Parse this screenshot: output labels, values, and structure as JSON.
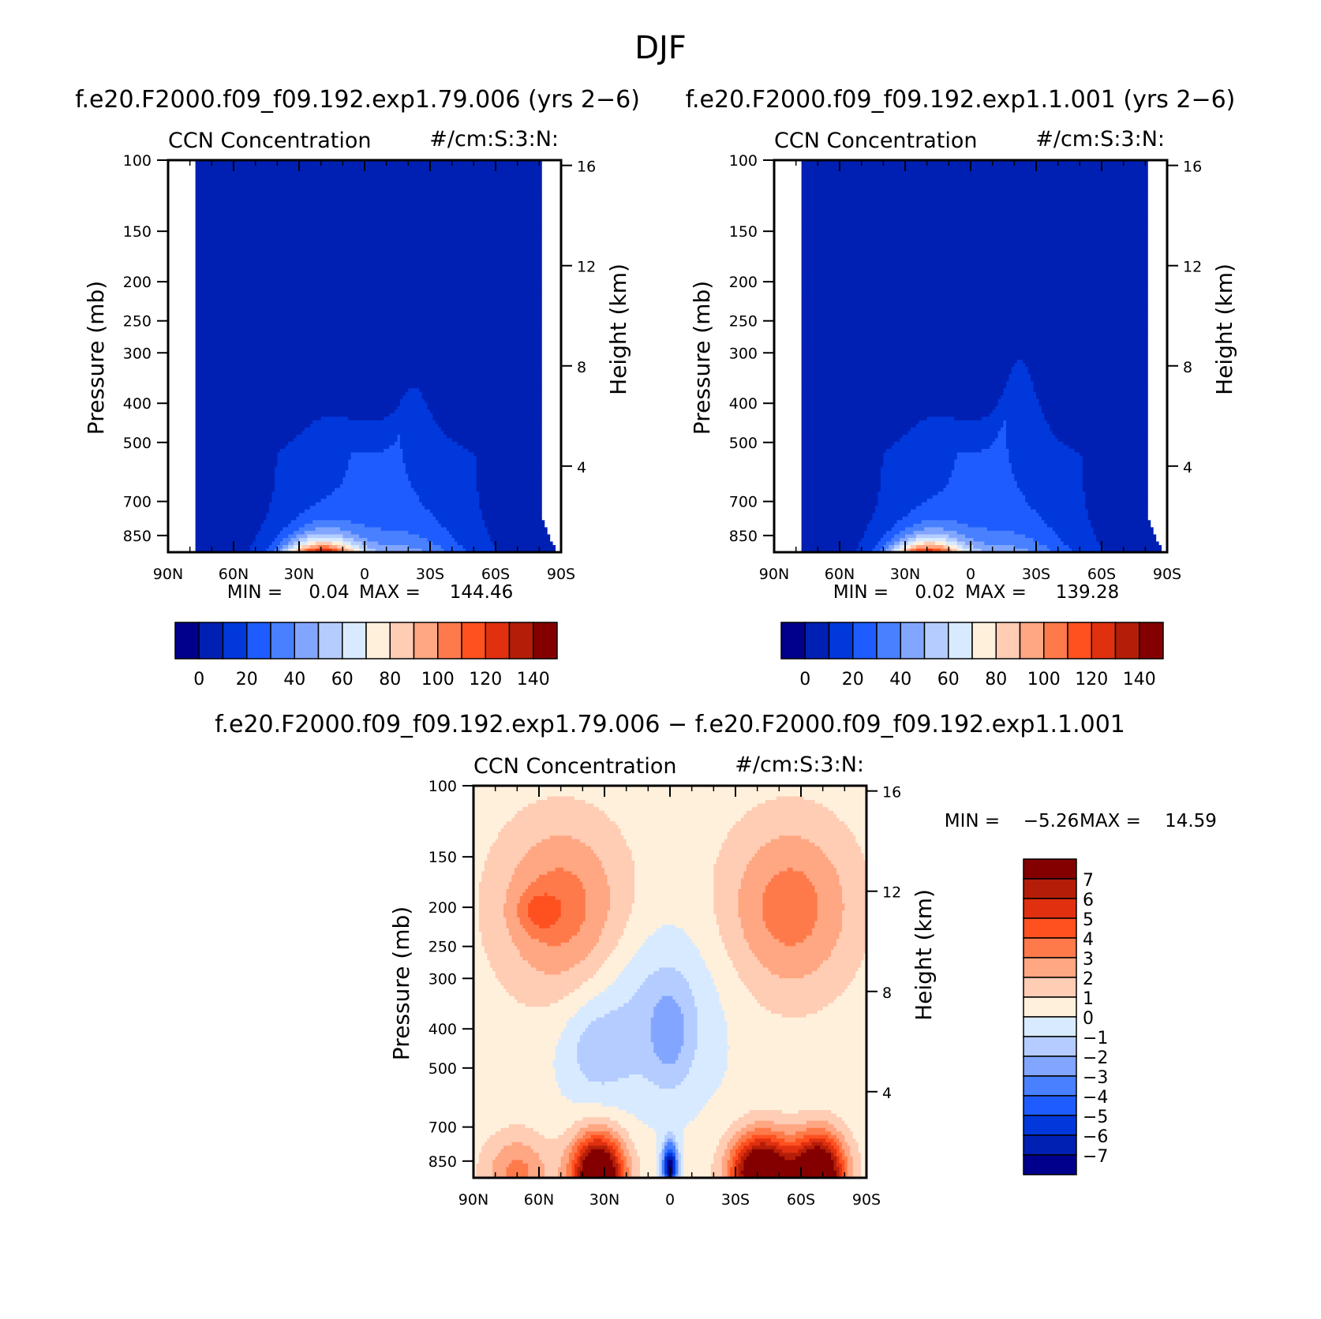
{
  "figure_title": "DJF",
  "chart_data": [
    {
      "type": "heatmap",
      "run_title": "f.e20.F2000.f09_f09.192.exp1.79.006 (yrs 2−6)",
      "variable": "CCN Concentration",
      "units": "#/cm:S:3:N:",
      "ylabel": "Pressure (mb)",
      "ylabel_right": "Height (km)",
      "x_ticks": [
        "90N",
        "60N",
        "30N",
        "0",
        "30S",
        "60S",
        "90S"
      ],
      "y_ticks": [
        "100",
        "150",
        "200",
        "250",
        "300",
        "400",
        "500",
        "700",
        "850"
      ],
      "y_ticks_right": [
        "16",
        "12",
        "8",
        "4"
      ],
      "min_label": "MIN =",
      "min_value": "0.04",
      "max_label": "MAX =",
      "max_value": "144.46",
      "colorbar_labels": [
        "0",
        "20",
        "40",
        "60",
        "80",
        "100",
        "120",
        "140"
      ],
      "colors": [
        "#00008c",
        "#0020b4",
        "#0038dc",
        "#1e5cff",
        "#4880ff",
        "#82a6ff",
        "#b4ccff",
        "#d8eaff",
        "#fff0dc",
        "#ffccb4",
        "#ffa682",
        "#ff7a4a",
        "#ff5020",
        "#e03010",
        "#b41e08",
        "#840000"
      ],
      "levels": [
        0,
        10,
        20,
        30,
        40,
        50,
        60,
        70,
        80,
        90,
        100,
        110,
        120,
        130,
        140
      ],
      "surface_max_value": 144.46,
      "peak_lat_deg": 20,
      "peak_width_deg": 17
    },
    {
      "type": "heatmap",
      "run_title": "f.e20.F2000.f09_f09.192.exp1.1.001 (yrs 2−6)",
      "variable": "CCN Concentration",
      "units": "#/cm:S:3:N:",
      "ylabel": "Pressure (mb)",
      "ylabel_right": "Height (km)",
      "x_ticks": [
        "90N",
        "60N",
        "30N",
        "0",
        "30S",
        "60S",
        "90S"
      ],
      "y_ticks": [
        "100",
        "150",
        "200",
        "250",
        "300",
        "400",
        "500",
        "700",
        "850"
      ],
      "y_ticks_right": [
        "16",
        "12",
        "8",
        "4"
      ],
      "min_label": "MIN =",
      "min_value": "0.02",
      "max_label": "MAX =",
      "max_value": "139.28",
      "colorbar_labels": [
        "0",
        "20",
        "40",
        "60",
        "80",
        "100",
        "120",
        "140"
      ],
      "colors": [
        "#00008c",
        "#0020b4",
        "#0038dc",
        "#1e5cff",
        "#4880ff",
        "#82a6ff",
        "#b4ccff",
        "#d8eaff",
        "#fff0dc",
        "#ffccb4",
        "#ffa682",
        "#ff7a4a",
        "#ff5020",
        "#e03010",
        "#b41e08",
        "#840000"
      ],
      "levels": [
        0,
        10,
        20,
        30,
        40,
        50,
        60,
        70,
        80,
        90,
        100,
        110,
        120,
        130,
        140
      ],
      "surface_max_value": 139.28,
      "peak_lat_deg": 20,
      "peak_width_deg": 17
    },
    {
      "type": "heatmap",
      "run_title": "f.e20.F2000.f09_f09.192.exp1.79.006 − f.e20.F2000.f09_f09.192.exp1.1.001",
      "variable": "CCN Concentration",
      "units": "#/cm:S:3:N:",
      "ylabel": "Pressure (mb)",
      "ylabel_right": "Height (km)",
      "x_ticks": [
        "90N",
        "60N",
        "30N",
        "0",
        "30S",
        "60S",
        "90S"
      ],
      "y_ticks": [
        "100",
        "150",
        "200",
        "250",
        "300",
        "400",
        "500",
        "700",
        "850"
      ],
      "y_ticks_right": [
        "16",
        "12",
        "8",
        "4"
      ],
      "min_label": "MIN =",
      "min_value": "−5.26",
      "max_label": "MAX =",
      "max_value": "14.59",
      "colorbar_labels": [
        "7",
        "6",
        "5",
        "4",
        "3",
        "2",
        "1",
        "0",
        "−1",
        "−2",
        "−3",
        "−4",
        "−5",
        "−6",
        "−7"
      ],
      "colors": [
        "#840000",
        "#b41e08",
        "#e03010",
        "#ff5020",
        "#ff7a4a",
        "#ffa682",
        "#ffccb4",
        "#fff0dc",
        "#d8eaff",
        "#b4ccff",
        "#82a6ff",
        "#4880ff",
        "#1e5cff",
        "#0038dc",
        "#0020b4",
        "#00008c"
      ],
      "levels": [
        -7,
        -6,
        -5,
        -4,
        -3,
        -2,
        -1,
        0,
        1,
        2,
        3,
        4,
        5,
        6,
        7
      ]
    }
  ],
  "colors": {
    "cold_colors": [
      "#00008c",
      "#0020b4",
      "#0038dc",
      "#1e5cff",
      "#4880ff",
      "#82a6ff",
      "#b4ccff",
      "#d8eaff"
    ],
    "warm_colors": [
      "#fff0dc",
      "#ffccb4",
      "#ffa682",
      "#ff7a4a",
      "#ff5020",
      "#e03010",
      "#b41e08",
      "#840000"
    ]
  }
}
